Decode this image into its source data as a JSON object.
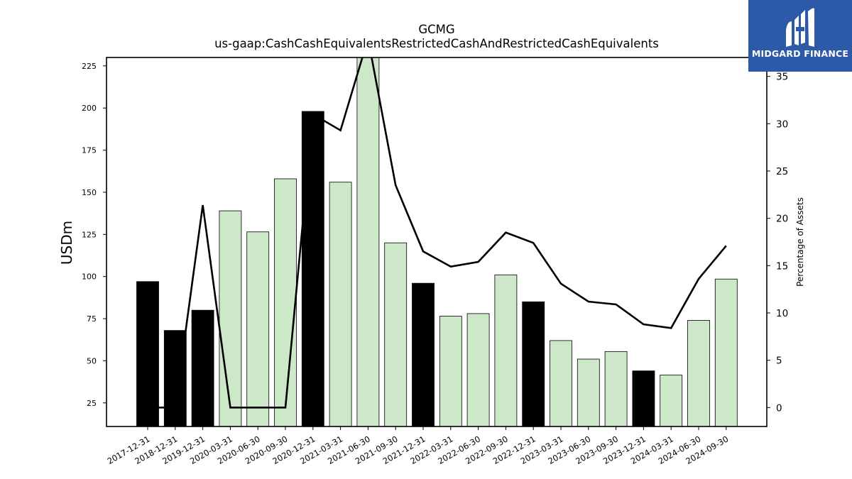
{
  "chart_data": {
    "type": "bar",
    "title": "GCMG",
    "subtitle": "us-gaap:CashCashEquivalentsRestrictedCashAndRestrictedCashEquivalents",
    "ylabel": "USDm",
    "y2label": "Percentage of Assets",
    "categories": [
      "2017-12-31",
      "2018-12-31",
      "2019-12-31",
      "2020-03-31",
      "2020-06-30",
      "2020-09-30",
      "2020-12-31",
      "2021-03-31",
      "2021-06-30",
      "2021-09-30",
      "2021-12-31",
      "2022-03-31",
      "2022-06-30",
      "2022-09-30",
      "2022-12-31",
      "2023-03-31",
      "2023-06-30",
      "2023-09-30",
      "2023-12-31",
      "2024-03-31",
      "2024-06-30",
      "2024-09-30"
    ],
    "series": [
      {
        "values": [
          97,
          68,
          80,
          139,
          126.5,
          158,
          198,
          156,
          230,
          120,
          96,
          76.5,
          78,
          101,
          85,
          62,
          51,
          55.5,
          44,
          41.5,
          74,
          98.5
        ],
        "bar_colors": [
          "#000000",
          "#000000",
          "#000000",
          "#cce8c8",
          "#cce8c8",
          "#cce8c8",
          "#000000",
          "#cce8c8",
          "#cce8c8",
          "#cce8c8",
          "#000000",
          "#cce8c8",
          "#cce8c8",
          "#cce8c8",
          "#000000",
          "#cce8c8",
          "#cce8c8",
          "#cce8c8",
          "#000000",
          "#cce8c8",
          "#cce8c8",
          "#cce8c8"
        ]
      },
      {
        "type": "line",
        "axis": "right",
        "values": [
          0,
          0,
          21.4,
          0,
          0,
          0,
          31,
          29.3,
          39,
          23.5,
          16.5,
          14.9,
          15.4,
          18.5,
          17.4,
          13.1,
          11.2,
          10.9,
          8.8,
          8.4,
          13.6,
          17.1
        ]
      }
    ],
    "ylim": [
      11,
      230
    ],
    "y2lim": [
      -2,
      37
    ],
    "yticks": [
      25,
      50,
      75,
      100,
      125,
      150,
      175,
      200,
      225
    ],
    "y2ticks": [
      0,
      5,
      10,
      15,
      20,
      25,
      30,
      35
    ],
    "colors": {
      "annual": "#000000",
      "quarterly": "#cce8c8",
      "line": "#000000",
      "logo_bg": "#2d5aa8"
    }
  },
  "logo": {
    "text": "MIDGARD FINANCE"
  }
}
